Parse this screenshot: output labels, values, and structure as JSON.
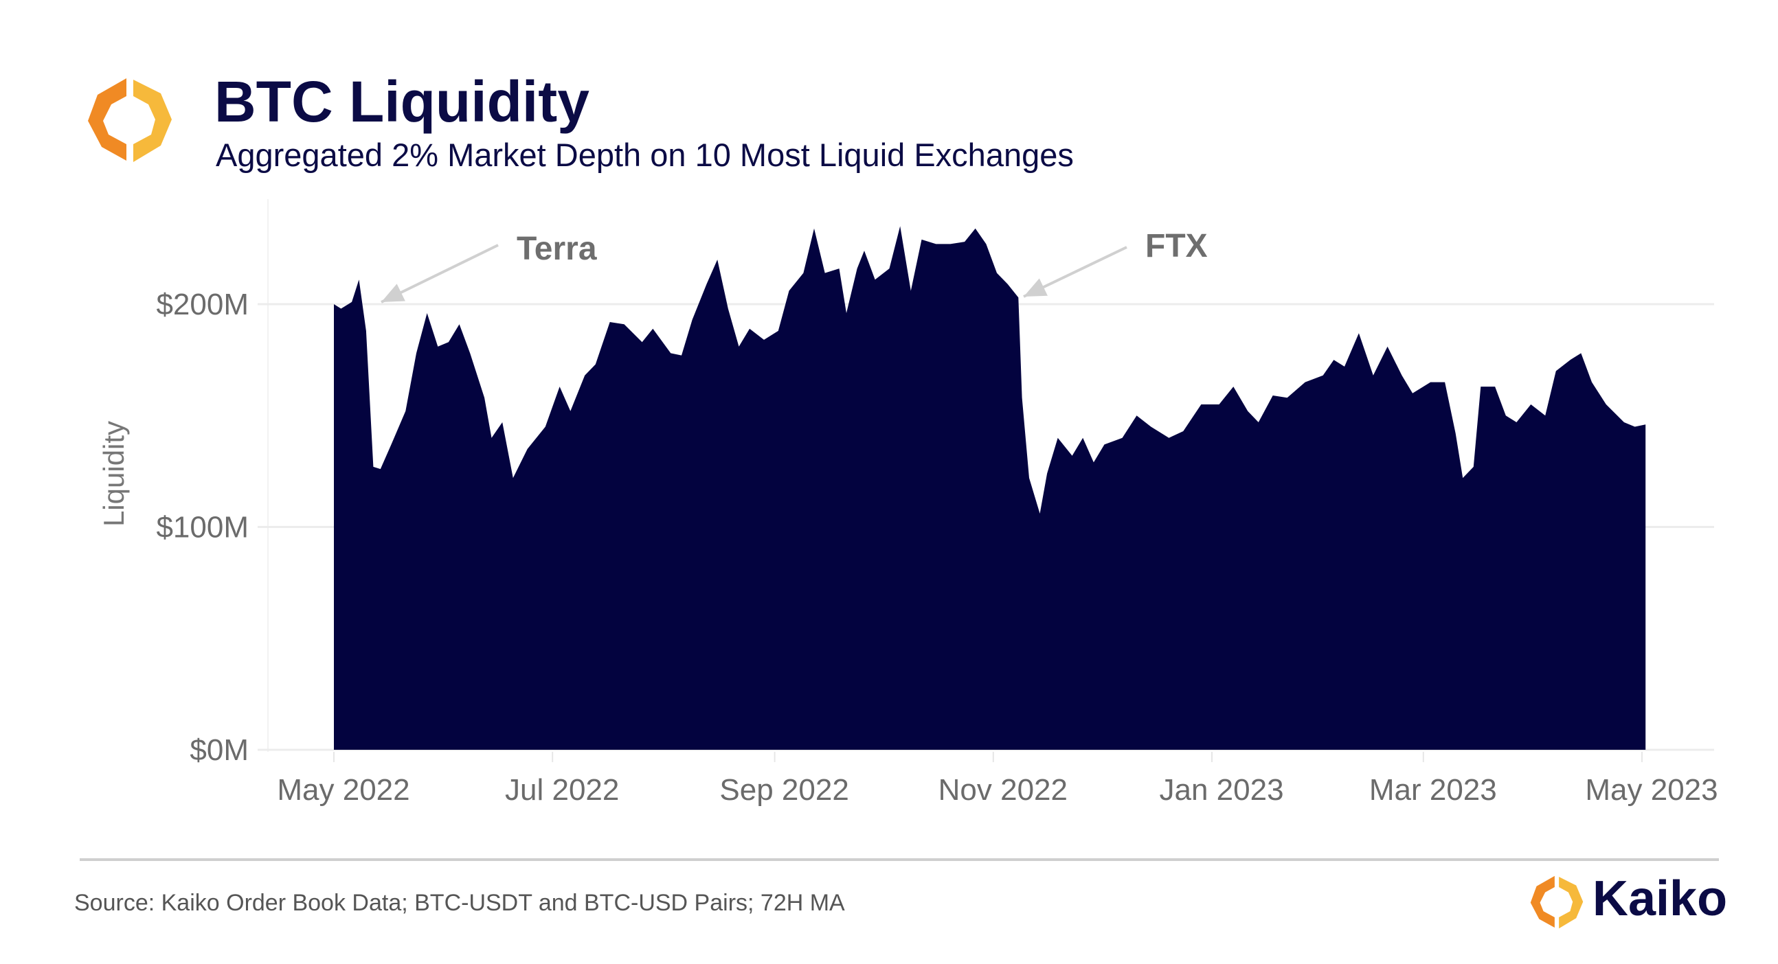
{
  "header": {
    "title": "BTC Liquidity",
    "subtitle": "Aggregated 2% Market Depth on 10 Most Liquid Exchanges"
  },
  "footer": {
    "source": "Source: Kaiko Order Book Data; BTC-USDT and BTC-USD Pairs; 72H MA",
    "brand": "Kaiko"
  },
  "colors": {
    "area": "#03033f",
    "title": "#0b0b45",
    "logo_orange": "#f08a24",
    "logo_yellow": "#f6b93b",
    "grid": "#ececec"
  },
  "chart_data": {
    "type": "area",
    "title": "BTC Liquidity",
    "subtitle": "Aggregated 2% Market Depth on 10 Most Liquid Exchanges",
    "xlabel": "",
    "ylabel": "Liquidity",
    "ylim": [
      0,
      240
    ],
    "yunit": "$M",
    "yticks": [
      {
        "value": 0,
        "label": "$0M"
      },
      {
        "value": 100,
        "label": "$100M"
      },
      {
        "value": 200,
        "label": "$200M"
      }
    ],
    "xticks": [
      {
        "date": "2022-05-01",
        "label": "May 2022"
      },
      {
        "date": "2022-07-01",
        "label": "Jul 2022"
      },
      {
        "date": "2022-09-01",
        "label": "Sep 2022"
      },
      {
        "date": "2022-11-01",
        "label": "Nov 2022"
      },
      {
        "date": "2023-01-01",
        "label": "Jan 2023"
      },
      {
        "date": "2023-03-01",
        "label": "Mar 2023"
      },
      {
        "date": "2023-05-01",
        "label": "May 2023"
      }
    ],
    "grid": true,
    "annotations": [
      {
        "text": "Terra",
        "date": "2022-05-09",
        "value": 200
      },
      {
        "text": "FTX",
        "date": "2022-11-08",
        "value": 203
      }
    ],
    "x": [
      "2022-05-01",
      "2022-05-03",
      "2022-05-06",
      "2022-05-08",
      "2022-05-10",
      "2022-05-12",
      "2022-05-14",
      "2022-05-17",
      "2022-05-21",
      "2022-05-24",
      "2022-05-27",
      "2022-05-30",
      "2022-06-02",
      "2022-06-05",
      "2022-06-08",
      "2022-06-12",
      "2022-06-14",
      "2022-06-17",
      "2022-06-20",
      "2022-06-24",
      "2022-06-29",
      "2022-07-03",
      "2022-07-06",
      "2022-07-10",
      "2022-07-13",
      "2022-07-17",
      "2022-07-21",
      "2022-07-26",
      "2022-07-29",
      "2022-08-03",
      "2022-08-06",
      "2022-08-09",
      "2022-08-13",
      "2022-08-16",
      "2022-08-19",
      "2022-08-22",
      "2022-08-25",
      "2022-08-29",
      "2022-09-02",
      "2022-09-05",
      "2022-09-09",
      "2022-09-12",
      "2022-09-15",
      "2022-09-19",
      "2022-09-21",
      "2022-09-24",
      "2022-09-26",
      "2022-09-29",
      "2022-10-03",
      "2022-10-06",
      "2022-10-09",
      "2022-10-12",
      "2022-10-16",
      "2022-10-20",
      "2022-10-24",
      "2022-10-27",
      "2022-10-30",
      "2022-11-02",
      "2022-11-05",
      "2022-11-08",
      "2022-11-09",
      "2022-11-11",
      "2022-11-14",
      "2022-11-16",
      "2022-11-19",
      "2022-11-23",
      "2022-11-26",
      "2022-11-29",
      "2022-12-02",
      "2022-12-07",
      "2022-12-11",
      "2022-12-15",
      "2022-12-20",
      "2022-12-24",
      "2022-12-29",
      "2023-01-03",
      "2023-01-07",
      "2023-01-11",
      "2023-01-14",
      "2023-01-18",
      "2023-01-22",
      "2023-01-27",
      "2023-02-01",
      "2023-02-04",
      "2023-02-07",
      "2023-02-11",
      "2023-02-15",
      "2023-02-19",
      "2023-02-23",
      "2023-02-26",
      "2023-03-03",
      "2023-03-07",
      "2023-03-10",
      "2023-03-12",
      "2023-03-15",
      "2023-03-17",
      "2023-03-21",
      "2023-03-24",
      "2023-03-27",
      "2023-03-31",
      "2023-04-04",
      "2023-04-07",
      "2023-04-11",
      "2023-04-14",
      "2023-04-17",
      "2023-04-21",
      "2023-04-26",
      "2023-04-29",
      "2023-05-02"
    ],
    "values": [
      200,
      198,
      201,
      211,
      188,
      127,
      126,
      137,
      152,
      178,
      196,
      181,
      183,
      191,
      178,
      158,
      140,
      147,
      122,
      135,
      145,
      163,
      152,
      168,
      173,
      192,
      191,
      183,
      189,
      178,
      177,
      193,
      209,
      220,
      198,
      181,
      189,
      184,
      188,
      206,
      214,
      234,
      214,
      216,
      196,
      216,
      224,
      211,
      216,
      235,
      206,
      229,
      227,
      227,
      228,
      234,
      227,
      214,
      209,
      203,
      158,
      122,
      106,
      124,
      140,
      132,
      140,
      129,
      137,
      140,
      150,
      145,
      140,
      143,
      155,
      155,
      163,
      152,
      147,
      159,
      158,
      165,
      168,
      175,
      172,
      187,
      168,
      181,
      168,
      160,
      165,
      165,
      142,
      122,
      127,
      163,
      163,
      150,
      147,
      155,
      150,
      170,
      175,
      178,
      165,
      155,
      147,
      145,
      146
    ]
  }
}
